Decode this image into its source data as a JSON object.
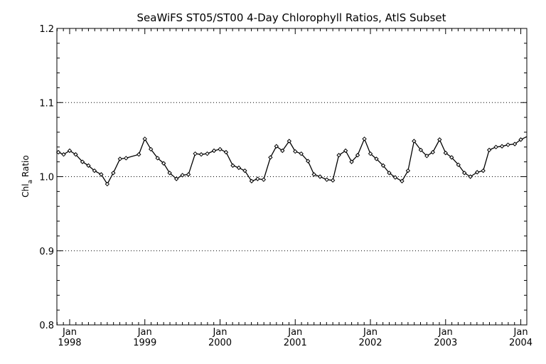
{
  "chart_data": {
    "type": "line",
    "title": "SeaWiFS ST05/ST00 4-Day Chlorophyll Ratios, AtlS Subset",
    "ylabel": "Chl",
    "ylabel_subscript": "a",
    "ylabel_suffix": " Ratio",
    "xlabel": "",
    "ylim": [
      0.8,
      1.2
    ],
    "xlim": [
      1997.83,
      2004.08
    ],
    "y_ticks": [
      "0.8",
      "0.9",
      "1.0",
      "1.1",
      "1.2"
    ],
    "y_tick_values": [
      0.8,
      0.9,
      1.0,
      1.1,
      1.2
    ],
    "x_tick_values": [
      1998,
      1999,
      2000,
      2001,
      2002,
      2003,
      2004
    ],
    "x_tick_months": [
      "Jan",
      "Jan",
      "Jan",
      "Jan",
      "Jan",
      "Jan",
      "Jan"
    ],
    "x_tick_years": [
      "1998",
      "1999",
      "2000",
      "2001",
      "2002",
      "2003",
      "2004"
    ],
    "grid_y": [
      0.9,
      1.0,
      1.1
    ],
    "series": [
      {
        "x": [
          1997.85,
          1997.92,
          1998.0,
          1998.08,
          1998.17,
          1998.25,
          1998.33,
          1998.42,
          1998.5,
          1998.58,
          1998.67,
          1998.75,
          1998.92,
          1999.0,
          1999.08,
          1999.17,
          1999.25,
          1999.33,
          1999.42,
          1999.5,
          1999.58,
          1999.67,
          1999.75,
          1999.83,
          1999.92,
          2000.0,
          2000.08,
          2000.17,
          2000.25,
          2000.33,
          2000.42,
          2000.5,
          2000.58,
          2000.67,
          2000.75,
          2000.83,
          2000.92,
          2001.0,
          2001.08,
          2001.17,
          2001.25,
          2001.33,
          2001.42,
          2001.5,
          2001.58,
          2001.67,
          2001.75,
          2001.83,
          2001.92,
          2002.0,
          2002.08,
          2002.17,
          2002.25,
          2002.33,
          2002.42,
          2002.5,
          2002.58,
          2002.67,
          2002.75,
          2002.83,
          2002.92,
          2003.0,
          2003.08,
          2003.17,
          2003.25,
          2003.33,
          2003.42,
          2003.5,
          2003.58,
          2003.67,
          2003.75,
          2003.83,
          2003.92,
          2004.0
        ],
        "y": [
          1.033,
          1.03,
          1.035,
          1.03,
          1.02,
          1.015,
          1.008,
          1.003,
          0.99,
          1.005,
          1.024,
          1.025,
          1.03,
          1.051,
          1.037,
          1.025,
          1.018,
          1.005,
          0.997,
          1.002,
          1.003,
          1.031,
          1.03,
          1.031,
          1.035,
          1.037,
          1.033,
          1.015,
          1.012,
          1.008,
          0.994,
          0.997,
          0.996,
          1.026,
          1.041,
          1.035,
          1.048,
          1.034,
          1.031,
          1.021,
          1.003,
          1.0,
          0.996,
          0.995,
          1.029,
          1.035,
          1.02,
          1.029,
          1.051,
          1.031,
          1.024,
          1.015,
          1.005,
          0.999,
          0.994,
          1.008,
          1.048,
          1.036,
          1.028,
          1.033,
          1.05,
          1.032,
          1.026,
          1.016,
          1.005,
          1.0,
          1.006,
          1.008,
          1.036,
          1.04,
          1.041,
          1.043,
          1.044,
          1.05
        ]
      }
    ]
  }
}
